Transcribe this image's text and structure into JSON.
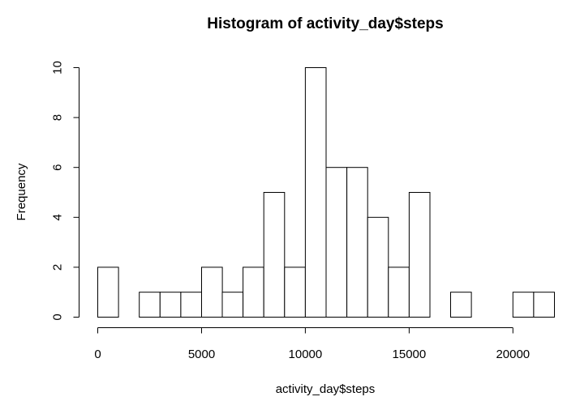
{
  "chart_data": {
    "type": "bar",
    "title": "Histogram of activity_day$steps",
    "xlabel": "activity_day$steps",
    "ylabel": "Frequency",
    "bin_width": 1000,
    "bins": [
      {
        "start": 0,
        "end": 1000,
        "count": 2
      },
      {
        "start": 1000,
        "end": 2000,
        "count": 0
      },
      {
        "start": 2000,
        "end": 3000,
        "count": 1
      },
      {
        "start": 3000,
        "end": 4000,
        "count": 1
      },
      {
        "start": 4000,
        "end": 5000,
        "count": 1
      },
      {
        "start": 5000,
        "end": 6000,
        "count": 2
      },
      {
        "start": 6000,
        "end": 7000,
        "count": 1
      },
      {
        "start": 7000,
        "end": 8000,
        "count": 2
      },
      {
        "start": 8000,
        "end": 9000,
        "count": 5
      },
      {
        "start": 9000,
        "end": 10000,
        "count": 2
      },
      {
        "start": 10000,
        "end": 11000,
        "count": 10
      },
      {
        "start": 11000,
        "end": 12000,
        "count": 6
      },
      {
        "start": 12000,
        "end": 13000,
        "count": 6
      },
      {
        "start": 13000,
        "end": 14000,
        "count": 4
      },
      {
        "start": 14000,
        "end": 15000,
        "count": 2
      },
      {
        "start": 15000,
        "end": 16000,
        "count": 5
      },
      {
        "start": 16000,
        "end": 17000,
        "count": 0
      },
      {
        "start": 17000,
        "end": 18000,
        "count": 1
      },
      {
        "start": 18000,
        "end": 19000,
        "count": 0
      },
      {
        "start": 19000,
        "end": 20000,
        "count": 0
      },
      {
        "start": 20000,
        "end": 21000,
        "count": 1
      },
      {
        "start": 21000,
        "end": 22000,
        "count": 1
      }
    ],
    "xlim": [
      0,
      22000
    ],
    "ylim": [
      0,
      10
    ],
    "x_ticks": [
      {
        "value": 0,
        "label": "0"
      },
      {
        "value": 5000,
        "label": "5000"
      },
      {
        "value": 10000,
        "label": "10000"
      },
      {
        "value": 15000,
        "label": "15000"
      },
      {
        "value": 20000,
        "label": "20000"
      }
    ],
    "y_ticks": [
      {
        "value": 0,
        "label": "0"
      },
      {
        "value": 2,
        "label": "2"
      },
      {
        "value": 4,
        "label": "4"
      },
      {
        "value": 6,
        "label": "6"
      },
      {
        "value": 8,
        "label": "8"
      },
      {
        "value": 10,
        "label": "10"
      }
    ],
    "grid": false,
    "legend": "none",
    "colors": {
      "bar_fill": "#ffffff",
      "bar_stroke": "#000000",
      "background": "#ffffff"
    }
  }
}
